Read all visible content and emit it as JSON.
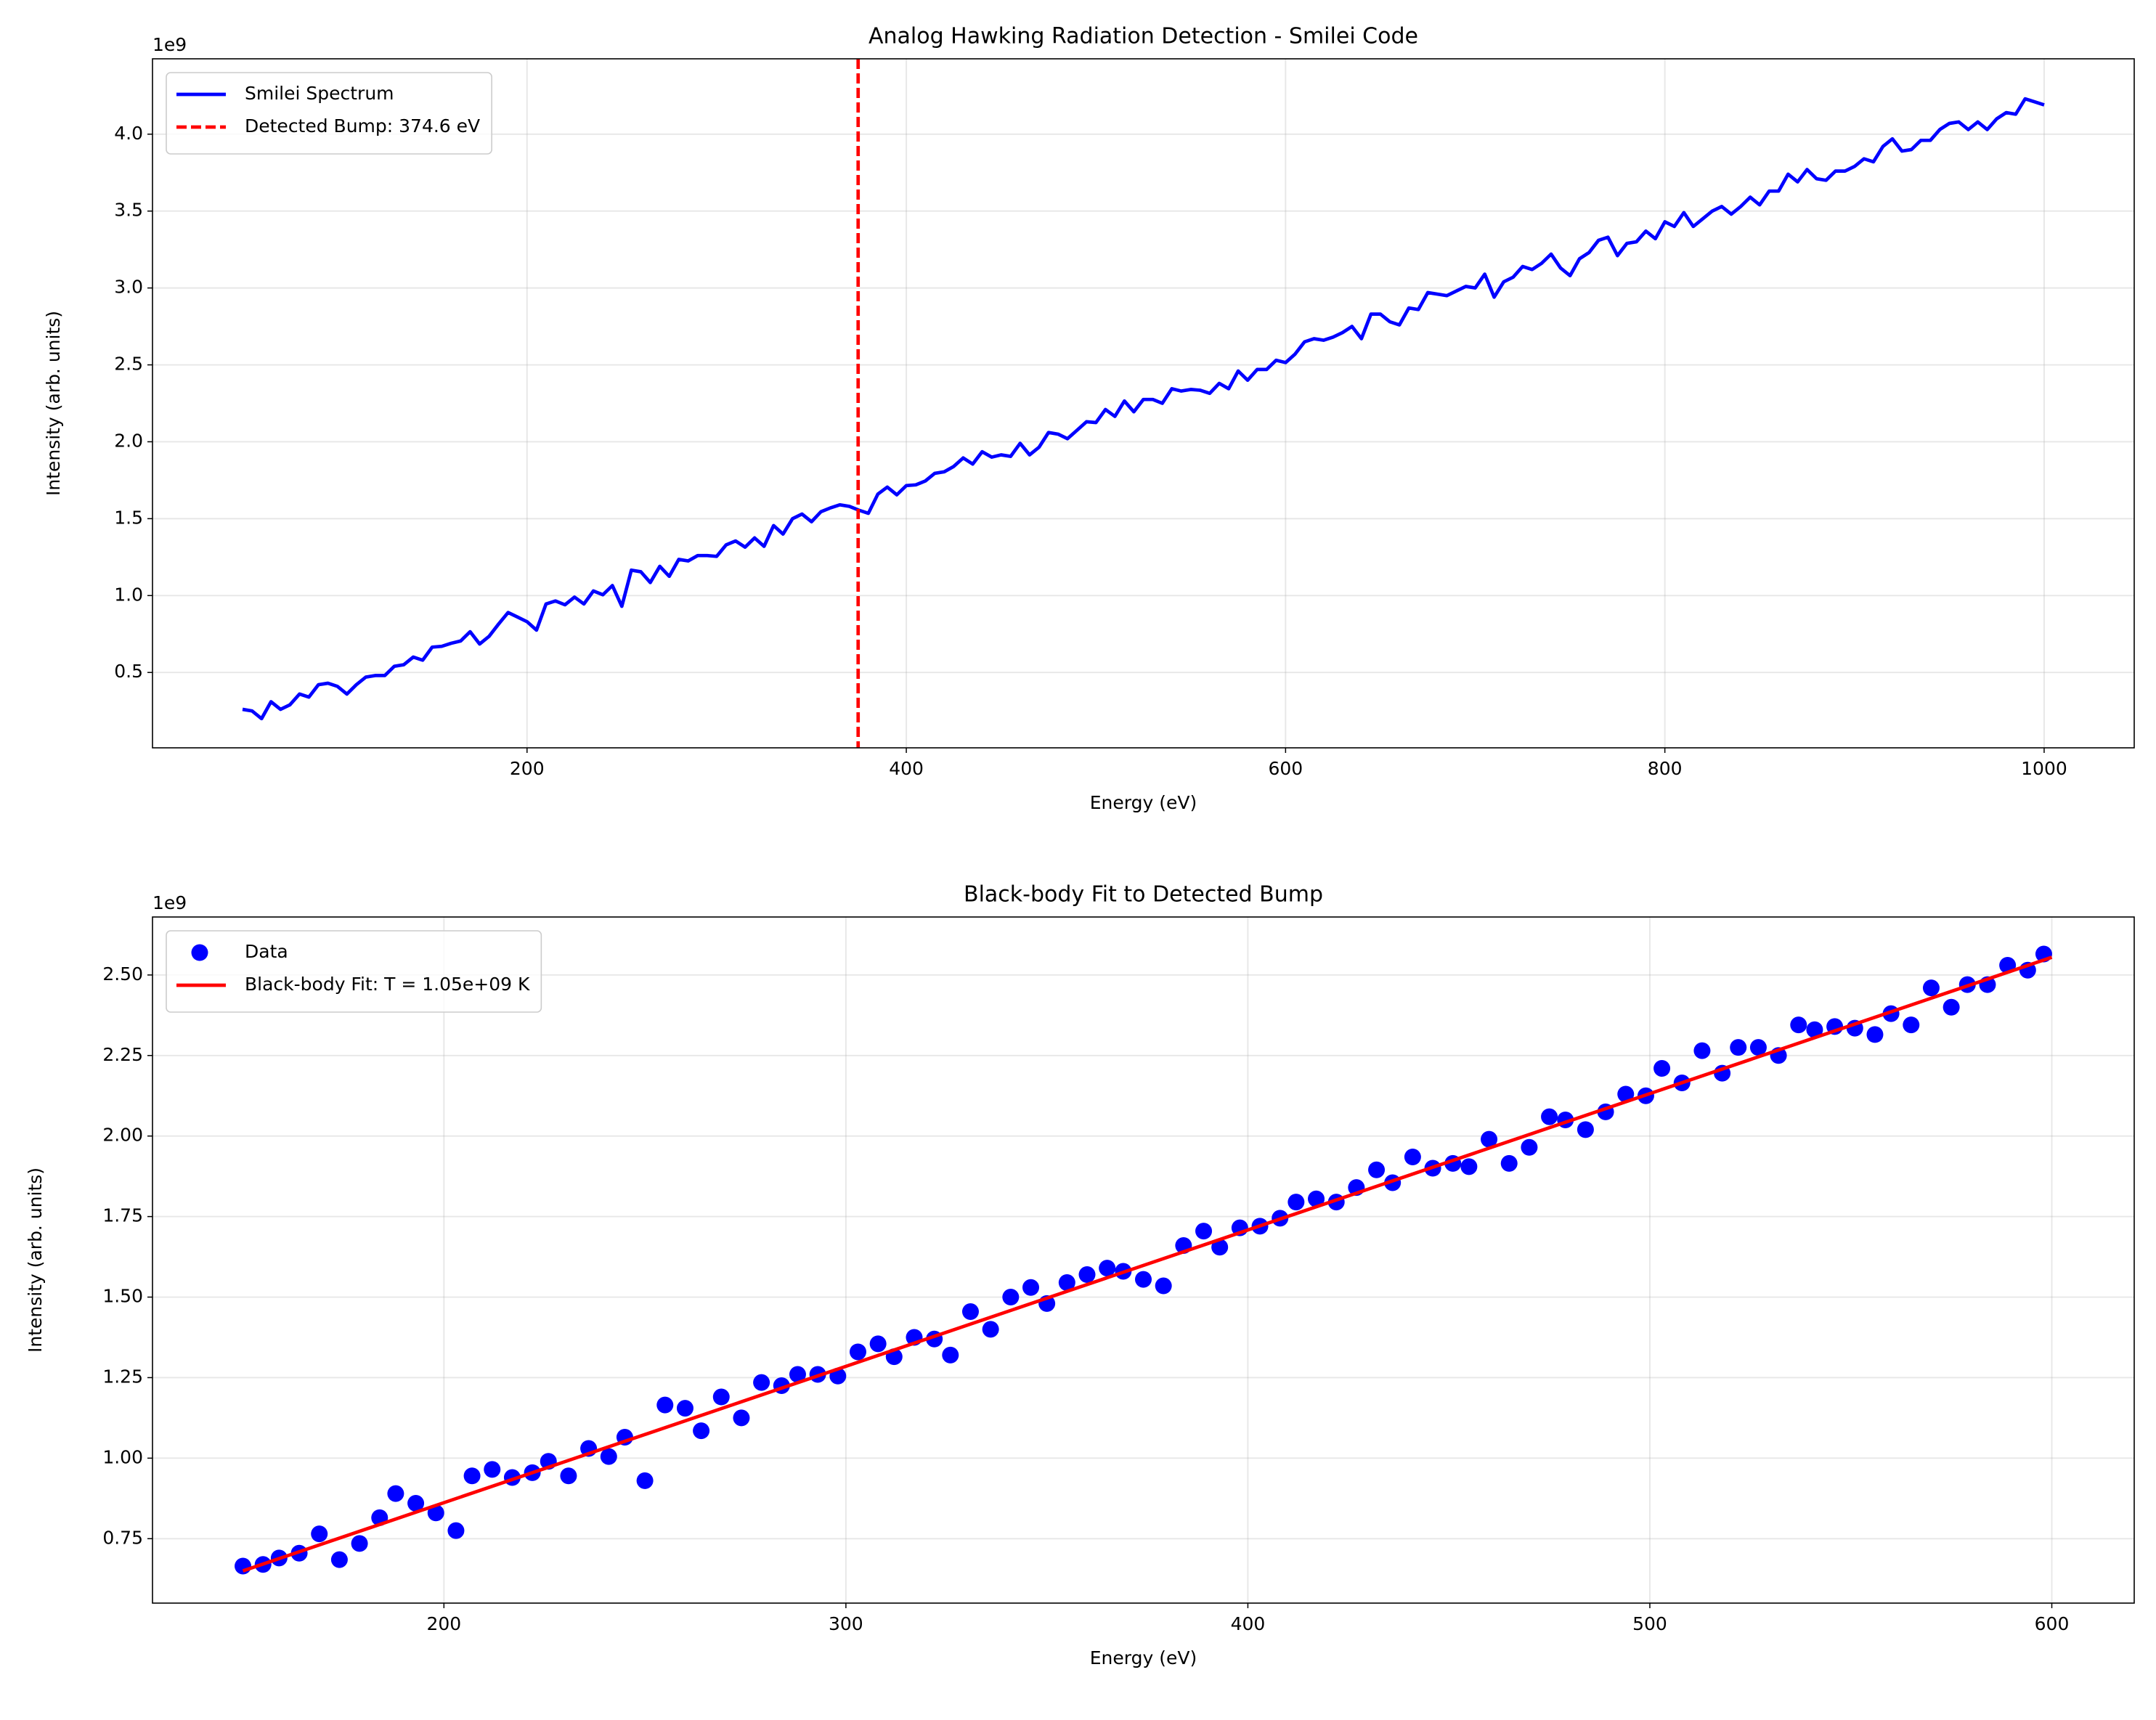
{
  "chart_data": [
    {
      "type": "line",
      "title": "Analog Hawking Radiation Detection - Smilei Code",
      "xlabel": "Energy (eV)",
      "ylabel": "Intensity (arb. units)",
      "offset_label": "1e9",
      "xlim": [
        2.5,
        1047.5
      ],
      "ylim": [
        0.01,
        4.49
      ],
      "xticks": [
        200,
        400,
        600,
        800,
        1000
      ],
      "yticks": [
        0.5,
        {
          "value": 1,
          "label": "1.0"
        },
        1.5,
        {
          "value": 2,
          "label": "2.0"
        },
        2.5,
        {
          "value": 3,
          "label": "3.0"
        },
        3.5,
        {
          "value": 4,
          "label": "4.0"
        }
      ],
      "grid": true,
      "legend": "upper left",
      "series": [
        {
          "name": "Smilei Spectrum",
          "color": "#0000ff",
          "style": "line",
          "x": [
            50,
            55,
            60,
            65,
            70,
            75,
            80,
            85,
            90,
            95,
            100,
            105,
            110,
            115,
            120,
            125,
            130,
            135,
            140,
            145,
            150,
            155,
            160,
            165,
            170,
            175,
            180,
            185,
            190,
            195,
            200,
            205,
            210,
            215,
            220,
            225,
            230,
            235,
            240,
            245,
            250,
            255,
            260,
            265,
            270,
            275,
            280,
            285,
            290,
            295,
            300,
            305,
            310,
            315,
            320,
            325,
            330,
            335,
            340,
            345,
            350,
            355,
            360,
            365,
            370,
            375,
            380,
            385,
            390,
            395,
            400,
            405,
            410,
            415,
            420,
            425,
            430,
            435,
            440,
            445,
            450,
            455,
            460,
            465,
            470,
            475,
            480,
            485,
            490,
            495,
            500,
            505,
            510,
            515,
            520,
            525,
            530,
            535,
            540,
            545,
            550,
            555,
            560,
            565,
            570,
            575,
            580,
            585,
            590,
            595,
            600,
            605,
            610,
            615,
            620,
            625,
            630,
            635,
            640,
            645,
            650,
            655,
            660,
            665,
            670,
            675,
            680,
            685,
            690,
            695,
            700,
            705,
            710,
            715,
            720,
            725,
            730,
            735,
            740,
            745,
            750,
            755,
            760,
            765,
            770,
            775,
            780,
            785,
            790,
            795,
            800,
            805,
            810,
            815,
            820,
            825,
            830,
            835,
            840,
            845,
            850,
            855,
            860,
            865,
            870,
            875,
            880,
            885,
            890,
            895,
            900,
            905,
            910,
            915,
            920,
            925,
            930,
            935,
            940,
            945,
            950,
            955,
            960,
            965,
            970,
            975,
            980,
            985,
            990,
            995,
            1000
          ],
          "values": [
            0.26,
            0.25,
            0.2,
            0.31,
            0.26,
            0.29,
            0.36,
            0.34,
            0.42,
            0.43,
            0.41,
            0.36,
            0.42,
            0.47,
            0.48,
            0.48,
            0.54,
            0.55,
            0.6,
            0.58,
            0.665,
            0.67,
            0.69,
            0.705,
            0.765,
            0.685,
            0.735,
            0.815,
            0.89,
            0.86,
            0.83,
            0.775,
            0.945,
            0.965,
            0.94,
            0.99,
            0.945,
            1.03,
            1.005,
            1.065,
            0.93,
            1.165,
            1.155,
            1.085,
            1.19,
            1.125,
            1.235,
            1.225,
            1.26,
            1.26,
            1.255,
            1.33,
            1.355,
            1.315,
            1.375,
            1.32,
            1.455,
            1.4,
            1.5,
            1.53,
            1.48,
            1.545,
            1.57,
            1.59,
            1.58,
            1.555,
            1.535,
            1.66,
            1.705,
            1.655,
            1.715,
            1.72,
            1.745,
            1.795,
            1.805,
            1.84,
            1.895,
            1.855,
            1.935,
            1.9,
            1.915,
            1.905,
            1.99,
            1.915,
            1.965,
            2.06,
            2.05,
            2.02,
            2.075,
            2.13,
            2.125,
            2.21,
            2.165,
            2.265,
            2.195,
            2.275,
            2.275,
            2.25,
            2.345,
            2.33,
            2.34,
            2.335,
            2.315,
            2.38,
            2.345,
            2.46,
            2.4,
            2.47,
            2.47,
            2.53,
            2.515,
            2.57,
            2.65,
            2.67,
            2.66,
            2.68,
            2.71,
            2.75,
            2.67,
            2.83,
            2.83,
            2.78,
            2.76,
            2.87,
            2.86,
            2.97,
            2.96,
            2.95,
            2.98,
            3.01,
            3.0,
            3.09,
            2.94,
            3.04,
            3.07,
            3.14,
            3.12,
            3.16,
            3.22,
            3.13,
            3.08,
            3.19,
            3.23,
            3.31,
            3.33,
            3.21,
            3.29,
            3.3,
            3.37,
            3.32,
            3.43,
            3.4,
            3.49,
            3.4,
            3.45,
            3.5,
            3.53,
            3.48,
            3.53,
            3.59,
            3.54,
            3.63,
            3.63,
            3.74,
            3.69,
            3.77,
            3.71,
            3.7,
            3.76,
            3.76,
            3.79,
            3.84,
            3.82,
            3.92,
            3.97,
            3.89,
            3.9,
            3.96,
            3.96,
            4.03,
            4.07,
            4.08,
            4.03,
            4.08,
            4.03,
            4.1,
            4.14,
            4.13,
            4.23,
            4.21,
            4.19
          ]
        }
      ],
      "vline": {
        "name": "Detected Bump: 374.6 eV",
        "x": 374.6,
        "color": "#ff0000"
      }
    },
    {
      "type": "scatter",
      "title": "Black-body Fit to Detected Bump",
      "xlabel": "Energy (eV)",
      "ylabel": "Intensity (arb. units)",
      "offset_label": "1e9",
      "xlim": [
        127.5,
        620.5
      ],
      "ylim": [
        0.55,
        2.68
      ],
      "xticks": [
        200,
        300,
        400,
        500,
        600
      ],
      "yticks": [
        0.75,
        {
          "value": 1,
          "label": "1.00"
        },
        1.25,
        {
          "value": 1.5,
          "label": "1.50"
        },
        1.75,
        {
          "value": 2,
          "label": "2.00"
        },
        2.25,
        {
          "value": 2.5,
          "label": "2.50"
        }
      ],
      "grid": true,
      "legend": "upper left",
      "series": [
        {
          "name": "Data",
          "color": "#0000ff",
          "style": "marker",
          "x": [
            150,
            155,
            159,
            164,
            169,
            174,
            179,
            184,
            188,
            193,
            198,
            203,
            207,
            212,
            217,
            222,
            226,
            231,
            236,
            241,
            245,
            250,
            255,
            260,
            264,
            269,
            274,
            279,
            284,
            288,
            293,
            298,
            303,
            308,
            312,
            317,
            322,
            326,
            331,
            336,
            341,
            346,
            350,
            355,
            360,
            365,
            369,
            374,
            379,
            384,
            389,
            393,
            398,
            403,
            408,
            412,
            417,
            422,
            427,
            432,
            436,
            441,
            446,
            451,
            455,
            460,
            465,
            470,
            475,
            479,
            484,
            489,
            494,
            499,
            503,
            508,
            513,
            518,
            522,
            527,
            532,
            537,
            541,
            546,
            551,
            556,
            560,
            565,
            570,
            575,
            579,
            584,
            589,
            594,
            598
          ],
          "values": [
            0.665,
            0.67,
            0.69,
            0.705,
            0.765,
            0.685,
            0.735,
            0.815,
            0.89,
            0.86,
            0.83,
            0.775,
            0.945,
            0.965,
            0.94,
            0.955,
            0.99,
            0.945,
            1.03,
            1.005,
            1.065,
            0.93,
            1.165,
            1.155,
            1.085,
            1.19,
            1.125,
            1.235,
            1.225,
            1.26,
            1.26,
            1.255,
            1.33,
            1.355,
            1.315,
            1.375,
            1.37,
            1.32,
            1.455,
            1.4,
            1.5,
            1.53,
            1.48,
            1.545,
            1.57,
            1.59,
            1.58,
            1.555,
            1.535,
            1.66,
            1.705,
            1.655,
            1.715,
            1.72,
            1.745,
            1.795,
            1.805,
            1.795,
            1.84,
            1.895,
            1.855,
            1.935,
            1.9,
            1.915,
            1.905,
            1.99,
            1.915,
            1.965,
            2.06,
            2.05,
            2.02,
            2.075,
            2.13,
            2.125,
            2.21,
            2.165,
            2.265,
            2.195,
            2.275,
            2.275,
            2.25,
            2.345,
            2.33,
            2.34,
            2.335,
            2.315,
            2.38,
            2.345,
            2.46,
            2.4,
            2.47,
            2.47,
            2.53,
            2.515,
            2.565
          ]
        },
        {
          "name": "Black-body Fit: T = 1.05e+09 K",
          "color": "#ff0000",
          "style": "line",
          "x": [
            150,
            600
          ],
          "values": [
            0.65,
            2.555
          ]
        }
      ]
    }
  ]
}
